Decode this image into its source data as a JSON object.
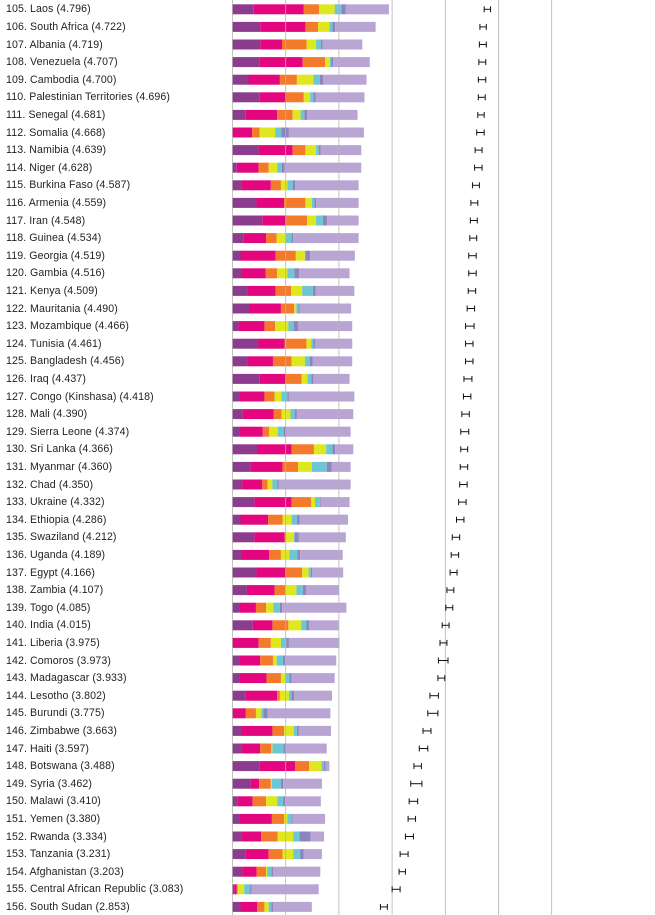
{
  "chart_data": {
    "type": "bar",
    "stacked": true,
    "orientation": "horizontal",
    "grid": true,
    "error_bars": true,
    "series_colors": [
      "#8b3c8e",
      "#e3067e",
      "#f47a2b",
      "#dfe81e",
      "#6ec5d4",
      "#8a85bf",
      "#b9a5d3"
    ],
    "rows": [
      {
        "label": "105. Laos (4.796)",
        "segments": [
          0.41,
          0.94,
          0.29,
          0.29,
          0.13,
          0.08,
          0.81
        ],
        "ci": [
          4.74,
          4.86
        ]
      },
      {
        "label": "106. South Africa (4.722)",
        "segments": [
          0.53,
          0.85,
          0.24,
          0.21,
          0.06,
          0.05,
          0.76
        ],
        "ci": [
          4.66,
          4.78
        ]
      },
      {
        "label": "107. Albania (4.719)",
        "segments": [
          0.53,
          0.41,
          0.46,
          0.18,
          0.09,
          0.03,
          0.75
        ],
        "ci": [
          4.65,
          4.78
        ]
      },
      {
        "label": "108. Venezuela (4.707)",
        "segments": [
          0.52,
          0.81,
          0.42,
          0.09,
          0.03,
          0.03,
          0.69
        ],
        "ci": [
          4.64,
          4.77
        ]
      },
      {
        "label": "109. Cambodia (4.700)",
        "segments": [
          0.31,
          0.59,
          0.32,
          0.31,
          0.12,
          0.06,
          0.82
        ],
        "ci": [
          4.63,
          4.77
        ]
      },
      {
        "label": "110. Palestinian Territories (4.696)",
        "segments": [
          0.52,
          0.49,
          0.34,
          0.12,
          0.06,
          0.04,
          0.92
        ],
        "ci": [
          4.63,
          4.76
        ]
      },
      {
        "label": "111. Senegal (4.681)",
        "segments": [
          0.25,
          0.6,
          0.29,
          0.15,
          0.07,
          0.05,
          0.95
        ],
        "ci": [
          4.62,
          4.74
        ]
      },
      {
        "label": "112. Somalia (4.668)",
        "segments": [
          0.0,
          0.38,
          0.14,
          0.29,
          0.12,
          0.14,
          1.41
        ],
        "ci": [
          4.6,
          4.74
        ]
      },
      {
        "label": "113. Namibia (4.639)",
        "segments": [
          0.5,
          0.64,
          0.24,
          0.2,
          0.05,
          0.04,
          0.76
        ],
        "ci": [
          4.57,
          4.7
        ]
      },
      {
        "label": "114. Niger (4.628)",
        "segments": [
          0.09,
          0.41,
          0.19,
          0.16,
          0.09,
          0.05,
          1.44
        ],
        "ci": [
          4.56,
          4.7
        ]
      },
      {
        "label": "115. Burkina Faso (4.587)",
        "segments": [
          0.18,
          0.55,
          0.19,
          0.12,
          0.1,
          0.05,
          1.19
        ],
        "ci": [
          4.52,
          4.65
        ]
      },
      {
        "label": "116. Armenia (4.559)",
        "segments": [
          0.46,
          0.52,
          0.4,
          0.12,
          0.05,
          0.03,
          0.8
        ],
        "ci": [
          4.49,
          4.62
        ]
      },
      {
        "label": "117. Iran (4.548)",
        "segments": [
          0.57,
          0.45,
          0.39,
          0.17,
          0.13,
          0.08,
          0.59
        ],
        "ci": [
          4.48,
          4.61
        ]
      },
      {
        "label": "118. Guinea (4.534)",
        "segments": [
          0.22,
          0.42,
          0.2,
          0.17,
          0.11,
          0.03,
          1.23
        ],
        "ci": [
          4.47,
          4.6
        ]
      },
      {
        "label": "119. Georgia (4.519)",
        "segments": [
          0.16,
          0.66,
          0.38,
          0.17,
          0.01,
          0.09,
          0.84
        ],
        "ci": [
          4.45,
          4.59
        ]
      },
      {
        "label": "120. Gambia (4.516)",
        "segments": [
          0.17,
          0.46,
          0.22,
          0.19,
          0.13,
          0.09,
          0.95
        ],
        "ci": [
          4.45,
          4.59
        ]
      },
      {
        "label": "121. Kenya (4.509)",
        "segments": [
          0.29,
          0.53,
          0.29,
          0.21,
          0.2,
          0.05,
          0.73
        ],
        "ci": [
          4.44,
          4.58
        ]
      },
      {
        "label": "122. Mauritania (4.490)",
        "segments": [
          0.32,
          0.6,
          0.25,
          0.04,
          0.04,
          0.02,
          0.97
        ],
        "ci": [
          4.42,
          4.56
        ]
      },
      {
        "label": "123. Mozambique (4.466)",
        "segments": [
          0.12,
          0.49,
          0.2,
          0.25,
          0.1,
          0.08,
          1.02
        ],
        "ci": [
          4.39,
          4.55
        ]
      },
      {
        "label": "124. Tunisia (4.461)",
        "segments": [
          0.49,
          0.5,
          0.41,
          0.09,
          0.04,
          0.03,
          0.7
        ],
        "ci": [
          4.39,
          4.53
        ]
      },
      {
        "label": "125. Bangladesh (4.456)",
        "segments": [
          0.29,
          0.48,
          0.35,
          0.25,
          0.09,
          0.06,
          0.74
        ],
        "ci": [
          4.39,
          4.53
        ]
      },
      {
        "label": "126. Iraq (4.437)",
        "segments": [
          0.52,
          0.49,
          0.3,
          0.11,
          0.07,
          0.04,
          0.68
        ],
        "ci": [
          4.36,
          4.51
        ]
      },
      {
        "label": "127. Congo (Kinshasa) (4.418)",
        "segments": [
          0.15,
          0.46,
          0.19,
          0.13,
          0.11,
          0.03,
          1.23
        ],
        "ci": [
          4.35,
          4.49
        ]
      },
      {
        "label": "128. Mali (4.390)",
        "segments": [
          0.2,
          0.58,
          0.15,
          0.17,
          0.08,
          0.04,
          1.06
        ],
        "ci": [
          4.32,
          4.46
        ]
      },
      {
        "label": "129. Sierra Leone (4.374)",
        "segments": [
          0.15,
          0.43,
          0.12,
          0.16,
          0.11,
          0.04,
          1.22
        ],
        "ci": [
          4.3,
          4.45
        ]
      },
      {
        "label": "130. Sri Lanka (4.366)",
        "segments": [
          0.47,
          0.65,
          0.42,
          0.23,
          0.12,
          0.05,
          0.34
        ],
        "ci": [
          4.3,
          4.43
        ]
      },
      {
        "label": "131. Myanmar (4.360)",
        "segments": [
          0.35,
          0.6,
          0.29,
          0.26,
          0.28,
          0.09,
          0.36
        ],
        "ci": [
          4.29,
          4.43
        ]
      },
      {
        "label": "132. Chad (4.350)",
        "segments": [
          0.19,
          0.38,
          0.1,
          0.09,
          0.09,
          0.03,
          1.35
        ],
        "ci": [
          4.28,
          4.42
        ]
      },
      {
        "label": "133. Ukraine (4.332)",
        "segments": [
          0.42,
          0.7,
          0.37,
          0.07,
          0.09,
          0.02,
          0.54
        ],
        "ci": [
          4.26,
          4.4
        ]
      },
      {
        "label": "134. Ethiopia (4.286)",
        "segments": [
          0.16,
          0.52,
          0.27,
          0.17,
          0.1,
          0.05,
          0.91
        ],
        "ci": [
          4.22,
          4.36
        ]
      },
      {
        "label": "135. Swaziland (4.212)",
        "segments": [
          0.42,
          0.57,
          0.02,
          0.15,
          0.02,
          0.07,
          0.89
        ],
        "ci": [
          4.14,
          4.28
        ]
      },
      {
        "label": "136. Uganda (4.189)",
        "segments": [
          0.17,
          0.53,
          0.22,
          0.16,
          0.15,
          0.05,
          0.8
        ],
        "ci": [
          4.12,
          4.26
        ]
      },
      {
        "label": "137. Egypt (4.166)",
        "segments": [
          0.46,
          0.55,
          0.31,
          0.12,
          0.04,
          0.03,
          0.58
        ],
        "ci": [
          4.1,
          4.23
        ]
      },
      {
        "label": "138. Zambia (4.107)",
        "segments": [
          0.28,
          0.52,
          0.2,
          0.21,
          0.12,
          0.06,
          0.62
        ],
        "ci": [
          4.04,
          4.17
        ]
      },
      {
        "label": "139. Togo (4.085)",
        "segments": [
          0.14,
          0.31,
          0.19,
          0.14,
          0.12,
          0.04,
          1.21
        ],
        "ci": [
          4.02,
          4.15
        ]
      },
      {
        "label": "140. India (4.015)",
        "segments": [
          0.39,
          0.37,
          0.3,
          0.24,
          0.1,
          0.05,
          0.55
        ],
        "ci": [
          3.95,
          4.08
        ]
      },
      {
        "label": "141. Liberia (3.975)",
        "segments": [
          0.0,
          0.5,
          0.23,
          0.19,
          0.1,
          0.05,
          0.95
        ],
        "ci": [
          3.91,
          4.04
        ]
      },
      {
        "label": "142. Comoros (3.973)",
        "segments": [
          0.15,
          0.38,
          0.24,
          0.07,
          0.12,
          0.04,
          0.96
        ],
        "ci": [
          3.88,
          4.06
        ]
      },
      {
        "label": "143. Madagascar (3.933)",
        "segments": [
          0.15,
          0.5,
          0.27,
          0.08,
          0.08,
          0.04,
          0.81
        ],
        "ci": [
          3.87,
          4.0
        ]
      },
      {
        "label": "144. Lesotho (3.802)",
        "segments": [
          0.25,
          0.6,
          0.05,
          0.17,
          0.05,
          0.05,
          0.71
        ],
        "ci": [
          3.72,
          3.88
        ]
      },
      {
        "label": "145. Burundi (3.775)",
        "segments": [
          0.0,
          0.26,
          0.19,
          0.1,
          0.04,
          0.08,
          1.18
        ],
        "ci": [
          3.68,
          3.87
        ]
      },
      {
        "label": "146. Zimbabwe (3.663)",
        "segments": [
          0.17,
          0.59,
          0.22,
          0.18,
          0.06,
          0.03,
          0.61
        ],
        "ci": [
          3.59,
          3.74
        ]
      },
      {
        "label": "147. Haiti (3.597)",
        "segments": [
          0.18,
          0.35,
          0.21,
          0.02,
          0.21,
          0.05,
          0.76
        ],
        "ci": [
          3.52,
          3.68
        ]
      },
      {
        "label": "148. Botswana (3.488)",
        "segments": [
          0.52,
          0.67,
          0.26,
          0.23,
          0.05,
          0.03,
          0.07
        ],
        "ci": [
          3.42,
          3.56
        ]
      },
      {
        "label": "149. Syria (3.462)",
        "segments": [
          0.35,
          0.16,
          0.22,
          0.02,
          0.17,
          0.04,
          0.73
        ],
        "ci": [
          3.36,
          3.57
        ]
      },
      {
        "label": "150. Malawi (3.410)",
        "segments": [
          0.1,
          0.29,
          0.25,
          0.21,
          0.11,
          0.04,
          0.67
        ],
        "ci": [
          3.33,
          3.49
        ]
      },
      {
        "label": "151. Yemen (3.380)",
        "segments": [
          0.15,
          0.6,
          0.23,
          0.06,
          0.08,
          0.02,
          0.61
        ],
        "ci": [
          3.31,
          3.45
        ]
      },
      {
        "label": "152. Rwanda (3.334)",
        "segments": [
          0.18,
          0.37,
          0.31,
          0.29,
          0.12,
          0.21,
          0.25
        ],
        "ci": [
          3.26,
          3.41
        ]
      },
      {
        "label": "153. Tanzania (3.231)",
        "segments": [
          0.25,
          0.44,
          0.26,
          0.2,
          0.13,
          0.07,
          0.34
        ],
        "ci": [
          3.16,
          3.31
        ]
      },
      {
        "label": "154. Afghanistan (3.203)",
        "segments": [
          0.19,
          0.27,
          0.18,
          0.02,
          0.08,
          0.03,
          0.89
        ],
        "ci": [
          3.14,
          3.26
        ]
      },
      {
        "label": "155. Central African Republic (3.083)",
        "segments": [
          0.04,
          0.05,
          0.02,
          0.12,
          0.11,
          0.03,
          1.26
        ],
        "ci": [
          3.01,
          3.16
        ]
      },
      {
        "label": "156. South Sudan (2.853)",
        "segments": [
          0.16,
          0.31,
          0.14,
          0.08,
          0.05,
          0.03,
          0.73
        ],
        "ci": [
          2.79,
          2.92
        ]
      }
    ]
  }
}
